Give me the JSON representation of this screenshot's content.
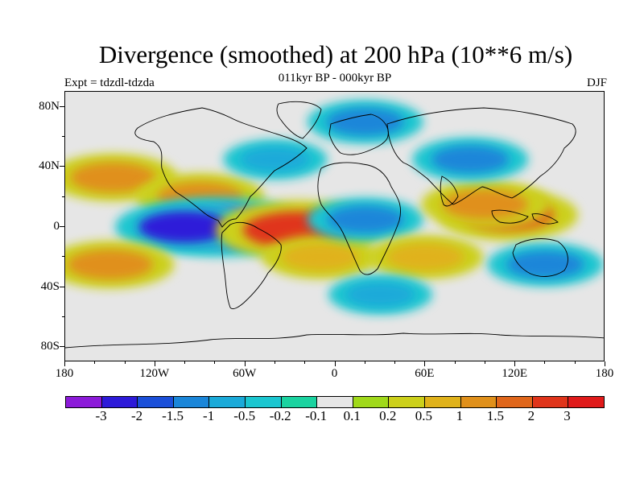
{
  "title": "Divergence (smoothed) at 200 hPa (10**6 m/s)",
  "subtitle": "011kyr BP - 000kyr BP",
  "left_label": "Expt = tdzdl-tdzda",
  "right_label": "DJF",
  "map": {
    "projection": "cylindrical equidistant",
    "lon_range": [
      -180,
      180
    ],
    "lat_range": [
      -90,
      90
    ],
    "y_labels": [
      "80N",
      "40N",
      "0",
      "40S",
      "80S"
    ],
    "x_labels": [
      "180",
      "120W",
      "60W",
      "0",
      "60E",
      "120E",
      "180"
    ],
    "features": [
      {
        "name": "north-pacific-positive",
        "lon": -148,
        "lat": 33,
        "value": 1.5
      },
      {
        "name": "caribbean-positive",
        "lon": -90,
        "lat": 20,
        "value": 1.5
      },
      {
        "name": "amazon-negative",
        "lon": -75,
        "lat": 0,
        "value": -3
      },
      {
        "name": "eastern-pacific-negative",
        "lon": -100,
        "lat": 0,
        "value": -2
      },
      {
        "name": "tropical-atlantic-positive",
        "lon": -25,
        "lat": -2,
        "value": 3
      },
      {
        "name": "south-pacific-positive",
        "lon": -150,
        "lat": -25,
        "value": 1.5
      },
      {
        "name": "south-atlantic-positive",
        "lon": -10,
        "lat": -20,
        "value": 1
      },
      {
        "name": "africa-negative",
        "lon": 20,
        "lat": 5,
        "value": -1
      },
      {
        "name": "indian-ocean-positive",
        "lon": 60,
        "lat": -20,
        "value": 1
      },
      {
        "name": "maritime-continent-positive",
        "lon": 115,
        "lat": 8,
        "value": 2
      },
      {
        "name": "southeast-asia-positive",
        "lon": 100,
        "lat": 15,
        "value": 1.5
      },
      {
        "name": "arctic-negative",
        "lon": 20,
        "lat": 70,
        "value": -1
      },
      {
        "name": "siberia-negative",
        "lon": 90,
        "lat": 45,
        "value": -1
      },
      {
        "name": "southern-ocean-negative",
        "lon": 30,
        "lat": -45,
        "value": -0.5
      },
      {
        "name": "australia-negative",
        "lon": 140,
        "lat": -25,
        "value": -1
      },
      {
        "name": "north-atlantic-negative",
        "lon": -40,
        "lat": 45,
        "value": -0.5
      }
    ]
  },
  "colorbar": {
    "labels": [
      "-3",
      "-2",
      "-1.5",
      "-1",
      "-0.5",
      "-0.2",
      "-0.1",
      "0.1",
      "0.2",
      "0.5",
      "1",
      "1.5",
      "2",
      "3"
    ],
    "colors": [
      "#8c1ad9",
      "#2d1ad9",
      "#1a4fd9",
      "#1a86d9",
      "#1aaad9",
      "#1ac6d0",
      "#1ad3a0",
      "#e6e6e6",
      "#a0d91a",
      "#ccd01a",
      "#e0b21a",
      "#e0901a",
      "#e0661a",
      "#e0341a",
      "#e01a1a"
    ]
  }
}
